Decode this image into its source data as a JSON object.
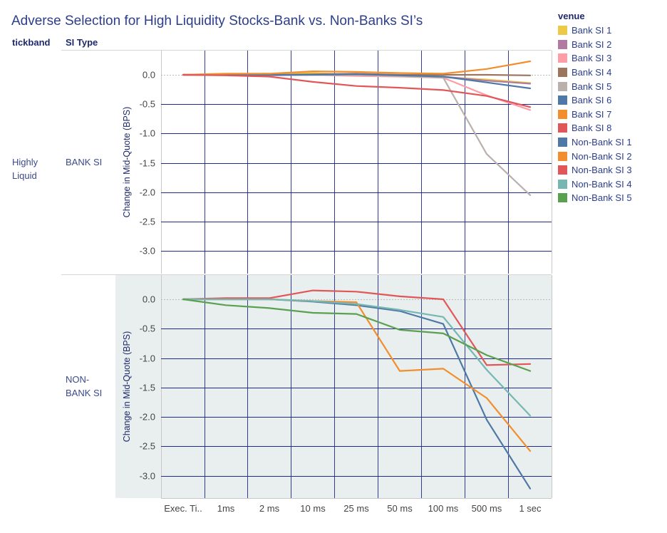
{
  "header": {
    "title": "Adverse Selection for High Liquidity Stocks-Bank vs. Non-Banks SI’s",
    "col_tickband": "tickband",
    "col_sitype": "SI Type"
  },
  "rows": {
    "tickband_label_1": "Highly",
    "tickband_label_2": "Liquid",
    "bank_label": "BANK SI",
    "nonbank_label_1": "NON-",
    "nonbank_label_2": "BANK SI"
  },
  "legend": {
    "title": "venue",
    "items": [
      {
        "name": "Bank SI 1",
        "color": "#edc948"
      },
      {
        "name": "Bank SI 2",
        "color": "#b07aa1"
      },
      {
        "name": "Bank SI 3",
        "color": "#ff9da7"
      },
      {
        "name": "Bank SI 4",
        "color": "#9c755f"
      },
      {
        "name": "Bank SI 5",
        "color": "#bab0ac"
      },
      {
        "name": "Bank SI 6",
        "color": "#4e79a7"
      },
      {
        "name": "Bank SI 7",
        "color": "#f28e2b"
      },
      {
        "name": "Bank SI 8",
        "color": "#e15759"
      },
      {
        "name": "Non-Bank SI 1",
        "color": "#4e79a7"
      },
      {
        "name": "Non-Bank SI 2",
        "color": "#f28e2b"
      },
      {
        "name": "Non-Bank SI 3",
        "color": "#e15759"
      },
      {
        "name": "Non-Bank SI 4",
        "color": "#76b7b2"
      },
      {
        "name": "Non-Bank SI 5",
        "color": "#59a14f"
      }
    ]
  },
  "chart_data": [
    {
      "type": "line",
      "panel": "BANK SI",
      "ylabel": "Change in Mid-Quote (BPS)",
      "categories": [
        "Exec. Ti..",
        "1ms",
        "2 ms",
        "10 ms",
        "25 ms",
        "50 ms",
        "100 ms",
        "500 ms",
        "1 sec"
      ],
      "yticks": [
        "0.0",
        "-0.5",
        "-1.0",
        "-1.5",
        "-2.0",
        "-2.5",
        "-3.0"
      ],
      "ylim": [
        -3.3,
        0.4
      ],
      "series": [
        {
          "name": "Bank SI 1",
          "color": "#edc948",
          "values": [
            0,
            0.01,
            0.02,
            0.03,
            0.0,
            -0.02,
            -0.04,
            -0.08,
            -0.14
          ]
        },
        {
          "name": "Bank SI 2",
          "color": "#b07aa1",
          "values": [
            0,
            0.0,
            -0.01,
            0.0,
            0.0,
            -0.02,
            -0.03,
            -0.1,
            -0.15
          ]
        },
        {
          "name": "Bank SI 3",
          "color": "#ff9da7",
          "values": [
            0,
            0.0,
            0.0,
            0.0,
            -0.02,
            -0.03,
            -0.05,
            -0.35,
            -0.6
          ]
        },
        {
          "name": "Bank SI 4",
          "color": "#9c755f",
          "values": [
            0,
            0.0,
            0.0,
            0.01,
            0.02,
            0.0,
            0.0,
            0.0,
            -0.01
          ]
        },
        {
          "name": "Bank SI 5",
          "color": "#bab0ac",
          "values": [
            0,
            0.0,
            0.0,
            0.0,
            0.0,
            -0.02,
            -0.05,
            -1.35,
            -2.05
          ]
        },
        {
          "name": "Bank SI 6",
          "color": "#4e79a7",
          "values": [
            0,
            0.0,
            0.0,
            0.0,
            0.01,
            -0.01,
            -0.03,
            -0.13,
            -0.23
          ]
        },
        {
          "name": "Bank SI 7",
          "color": "#f28e2b",
          "values": [
            0,
            0.02,
            0.02,
            0.06,
            0.05,
            0.03,
            0.02,
            0.1,
            0.23
          ]
        },
        {
          "name": "Bank SI 8",
          "color": "#e15759",
          "values": [
            0,
            -0.01,
            -0.03,
            -0.12,
            -0.19,
            -0.22,
            -0.26,
            -0.36,
            -0.55
          ]
        }
      ]
    },
    {
      "type": "line",
      "panel": "NON-BANK SI",
      "ylabel": "Change in Mid-Quote (BPS)",
      "categories": [
        "Exec. Ti..",
        "1ms",
        "2 ms",
        "10 ms",
        "25 ms",
        "50 ms",
        "100 ms",
        "500 ms",
        "1 sec"
      ],
      "yticks": [
        "0.0",
        "-0.5",
        "-1.0",
        "-1.5",
        "-2.0",
        "-2.5",
        "-3.0"
      ],
      "ylim": [
        -3.3,
        0.4
      ],
      "series": [
        {
          "name": "Non-Bank SI 1",
          "color": "#4e79a7",
          "values": [
            0,
            0.0,
            0.0,
            -0.04,
            -0.1,
            -0.2,
            -0.42,
            -2.05,
            -3.22
          ]
        },
        {
          "name": "Non-Bank SI 2",
          "color": "#f28e2b",
          "values": [
            0,
            0.0,
            0.0,
            -0.03,
            -0.05,
            -1.22,
            -1.18,
            -1.68,
            -2.58
          ]
        },
        {
          "name": "Non-Bank SI 3",
          "color": "#e15759",
          "values": [
            0,
            0.02,
            0.02,
            0.15,
            0.13,
            0.05,
            0.0,
            -1.12,
            -1.1
          ]
        },
        {
          "name": "Non-Bank SI 4",
          "color": "#76b7b2",
          "values": [
            0,
            0.0,
            0.0,
            -0.03,
            -0.08,
            -0.18,
            -0.3,
            -1.2,
            -1.98
          ]
        },
        {
          "name": "Non-Bank SI 5",
          "color": "#59a14f",
          "values": [
            0,
            -0.1,
            -0.15,
            -0.23,
            -0.25,
            -0.52,
            -0.58,
            -0.95,
            -1.22
          ]
        }
      ]
    }
  ]
}
